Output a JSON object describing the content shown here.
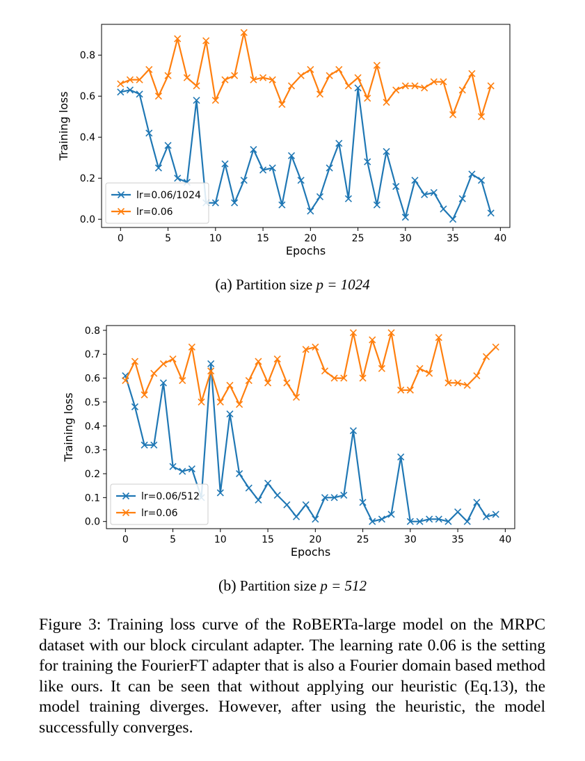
{
  "figure_caption": "Figure 3: Training loss curve of the RoBERTa-large model on the MRPC dataset with our block circulant adapter. The learning rate 0.06 is the setting for training the FourierFT adapter that is also a Fourier domain based method like ours. It can be seen that without applying our heuristic (Eq.13), the model training diverges. However, after using the heuristic, the model successfully converges.",
  "subfigures": [
    {
      "label": "(a)",
      "text": "Partition size",
      "math": "p = 1024"
    },
    {
      "label": "(b)",
      "text": "Partition size",
      "math": "p = 512"
    }
  ],
  "colors": {
    "series1": "#1f77b4",
    "series2": "#ff7f0e"
  },
  "chart_data": [
    {
      "type": "line",
      "title": "",
      "xlabel": "Epochs",
      "ylabel": "Training loss",
      "xlim": [
        -2,
        41
      ],
      "ylim": [
        -0.04,
        0.95
      ],
      "xticks": [
        0,
        5,
        10,
        15,
        20,
        25,
        30,
        35,
        40
      ],
      "yticks": [
        0.0,
        0.2,
        0.4,
        0.6,
        0.8
      ],
      "ytick_labels": [
        "0.0",
        "0.2",
        "0.4",
        "0.6",
        "0.8"
      ],
      "legend_position": "lower-left",
      "marker": "x",
      "x": [
        0,
        1,
        2,
        3,
        4,
        5,
        6,
        7,
        8,
        9,
        10,
        11,
        12,
        13,
        14,
        15,
        16,
        17,
        18,
        19,
        20,
        21,
        22,
        23,
        24,
        25,
        26,
        27,
        28,
        29,
        30,
        31,
        32,
        33,
        34,
        35,
        36,
        37,
        38,
        39
      ],
      "series": [
        {
          "name": "lr=0.06/1024",
          "color": "#1f77b4",
          "values": [
            0.62,
            0.63,
            0.61,
            0.42,
            0.25,
            0.36,
            0.2,
            0.18,
            0.58,
            0.08,
            0.08,
            0.27,
            0.08,
            0.19,
            0.34,
            0.24,
            0.25,
            0.07,
            0.31,
            0.19,
            0.04,
            0.11,
            0.25,
            0.37,
            0.1,
            0.64,
            0.28,
            0.07,
            0.33,
            0.16,
            0.01,
            0.19,
            0.12,
            0.13,
            0.05,
            0.0,
            0.1,
            0.22,
            0.19,
            0.03
          ]
        },
        {
          "name": "lr=0.06",
          "color": "#ff7f0e",
          "values": [
            0.66,
            0.68,
            0.68,
            0.73,
            0.6,
            0.7,
            0.88,
            0.69,
            0.65,
            0.87,
            0.58,
            0.68,
            0.7,
            0.91,
            0.68,
            0.69,
            0.68,
            0.56,
            0.65,
            0.7,
            0.73,
            0.61,
            0.7,
            0.73,
            0.65,
            0.69,
            0.59,
            0.75,
            0.57,
            0.63,
            0.65,
            0.65,
            0.64,
            0.67,
            0.67,
            0.51,
            0.63,
            0.71,
            0.5,
            0.65
          ]
        }
      ]
    },
    {
      "type": "line",
      "title": "",
      "xlabel": "Epochs",
      "ylabel": "Training loss",
      "xlim": [
        -2,
        41
      ],
      "ylim": [
        -0.03,
        0.82
      ],
      "xticks": [
        0,
        5,
        10,
        15,
        20,
        25,
        30,
        35,
        40
      ],
      "yticks": [
        0.0,
        0.1,
        0.2,
        0.3,
        0.4,
        0.5,
        0.6,
        0.7,
        0.8
      ],
      "ytick_labels": [
        "0.0",
        "0.1",
        "0.2",
        "0.3",
        "0.4",
        "0.5",
        "0.6",
        "0.7",
        "0.8"
      ],
      "legend_position": "lower-left",
      "marker": "x",
      "x": [
        0,
        1,
        2,
        3,
        4,
        5,
        6,
        7,
        8,
        9,
        10,
        11,
        12,
        13,
        14,
        15,
        16,
        17,
        18,
        19,
        20,
        21,
        22,
        23,
        24,
        25,
        26,
        27,
        28,
        29,
        30,
        31,
        32,
        33,
        34,
        35,
        36,
        37,
        38,
        39
      ],
      "series": [
        {
          "name": "lr=0.06/512",
          "color": "#1f77b4",
          "values": [
            0.61,
            0.48,
            0.32,
            0.32,
            0.58,
            0.23,
            0.21,
            0.22,
            0.1,
            0.66,
            0.12,
            0.45,
            0.2,
            0.14,
            0.09,
            0.16,
            0.11,
            0.07,
            0.02,
            0.07,
            0.01,
            0.1,
            0.1,
            0.11,
            0.38,
            0.08,
            0.0,
            0.01,
            0.03,
            0.27,
            0.0,
            0.0,
            0.01,
            0.01,
            0.0,
            0.04,
            0.0,
            0.08,
            0.02,
            0.03
          ]
        },
        {
          "name": "lr=0.06",
          "color": "#ff7f0e",
          "values": [
            0.59,
            0.67,
            0.53,
            0.62,
            0.66,
            0.68,
            0.59,
            0.73,
            0.5,
            0.63,
            0.5,
            0.57,
            0.49,
            0.59,
            0.67,
            0.58,
            0.68,
            0.58,
            0.52,
            0.72,
            0.73,
            0.63,
            0.6,
            0.6,
            0.79,
            0.6,
            0.76,
            0.64,
            0.79,
            0.55,
            0.55,
            0.64,
            0.62,
            0.77,
            0.58,
            0.58,
            0.57,
            0.61,
            0.69,
            0.73
          ]
        }
      ]
    }
  ]
}
